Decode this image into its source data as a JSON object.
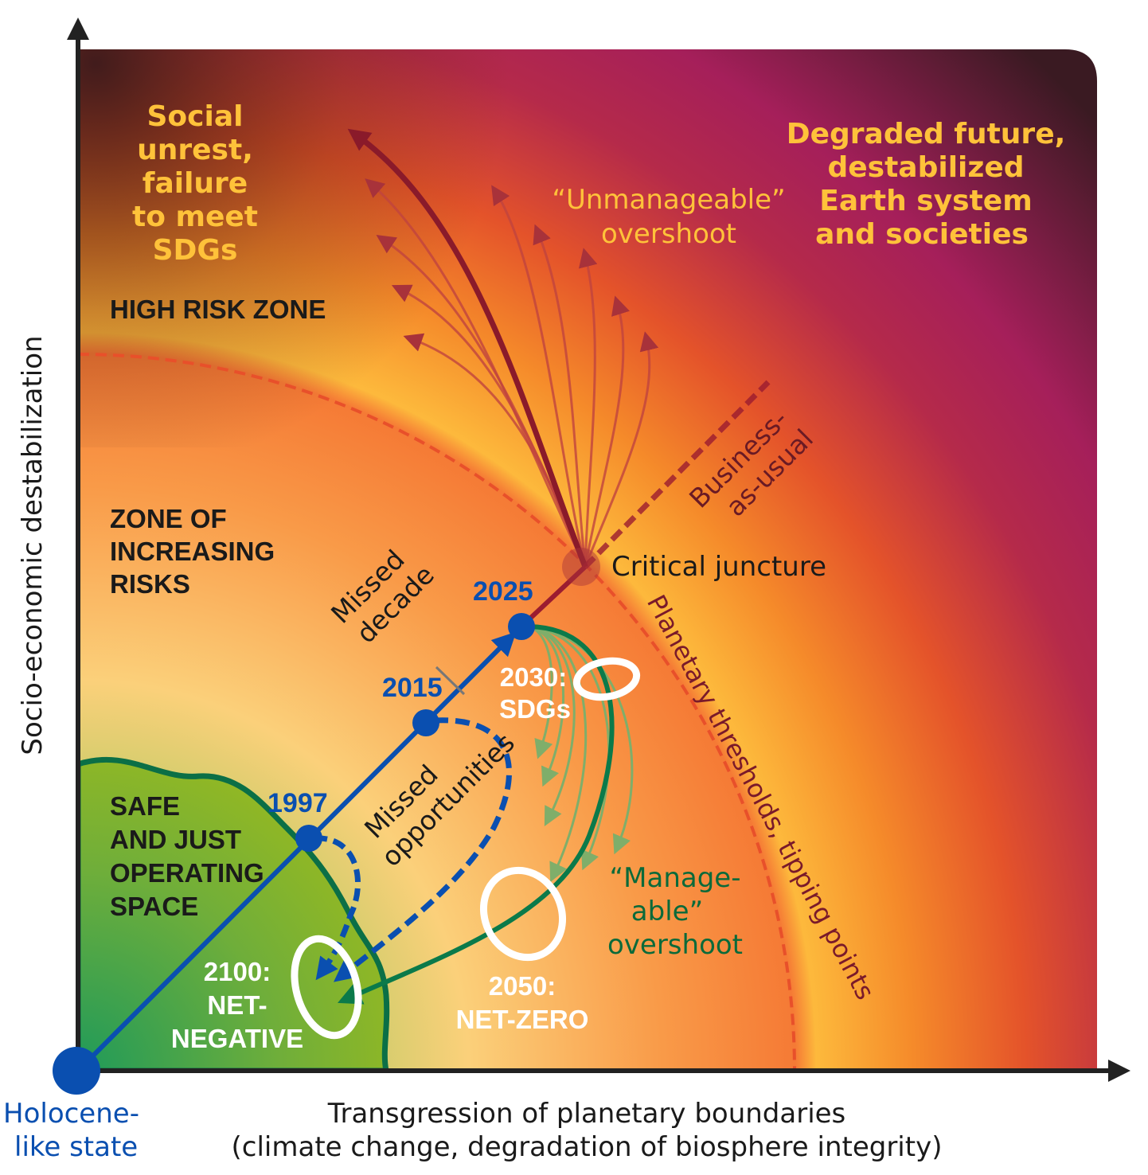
{
  "axes": {
    "y_label": "Socio-economic destabilization",
    "x_label_line1": "Transgression of planetary boundaries",
    "x_label_line2": "(climate change, degradation of biosphere integrity)",
    "origin_line1": "Holocene-",
    "origin_line2": "like state"
  },
  "zones": {
    "social_unrest": [
      "Social",
      "unrest,",
      "failure",
      "to meet",
      "SDGs"
    ],
    "high_risk": "HIGH RISK ZONE",
    "increasing_risks": [
      "ZONE OF",
      "INCREASING",
      "RISKS"
    ],
    "safe_space": [
      "SAFE",
      "AND JUST",
      "OPERATING",
      "SPACE"
    ],
    "degraded_future": [
      "Degraded future,",
      "destabilized",
      "Earth system",
      "and societies"
    ]
  },
  "labels": {
    "unmanageable": [
      "“Unmanageable”",
      "overshoot"
    ],
    "manageable": [
      "“Manage-",
      "able”",
      "overshoot"
    ],
    "business_as_usual": [
      "Business-",
      "as-usual"
    ],
    "critical_juncture": "Critical juncture",
    "thresholds": "Planetary thresholds, tipping points",
    "missed_decade": [
      "Missed",
      "decade"
    ],
    "missed_opportunities": [
      "Missed",
      "opportunities"
    ]
  },
  "milestones": {
    "y1997": "1997",
    "y2015": "2015",
    "y2025": "2025",
    "sdgs": [
      "2030:",
      "SDGs"
    ],
    "net_zero": [
      "2050:",
      "NET-ZERO"
    ],
    "net_negative": [
      "2100:",
      "NET-",
      "NEGATIVE"
    ]
  },
  "colors": {
    "path_blue": "#0a4fb0",
    "overshoot_red": "#9b1c30",
    "manageable_green": "#0b7a4a",
    "label_yellow": "#ffc23a",
    "threshold_dash": "#e8502a"
  }
}
